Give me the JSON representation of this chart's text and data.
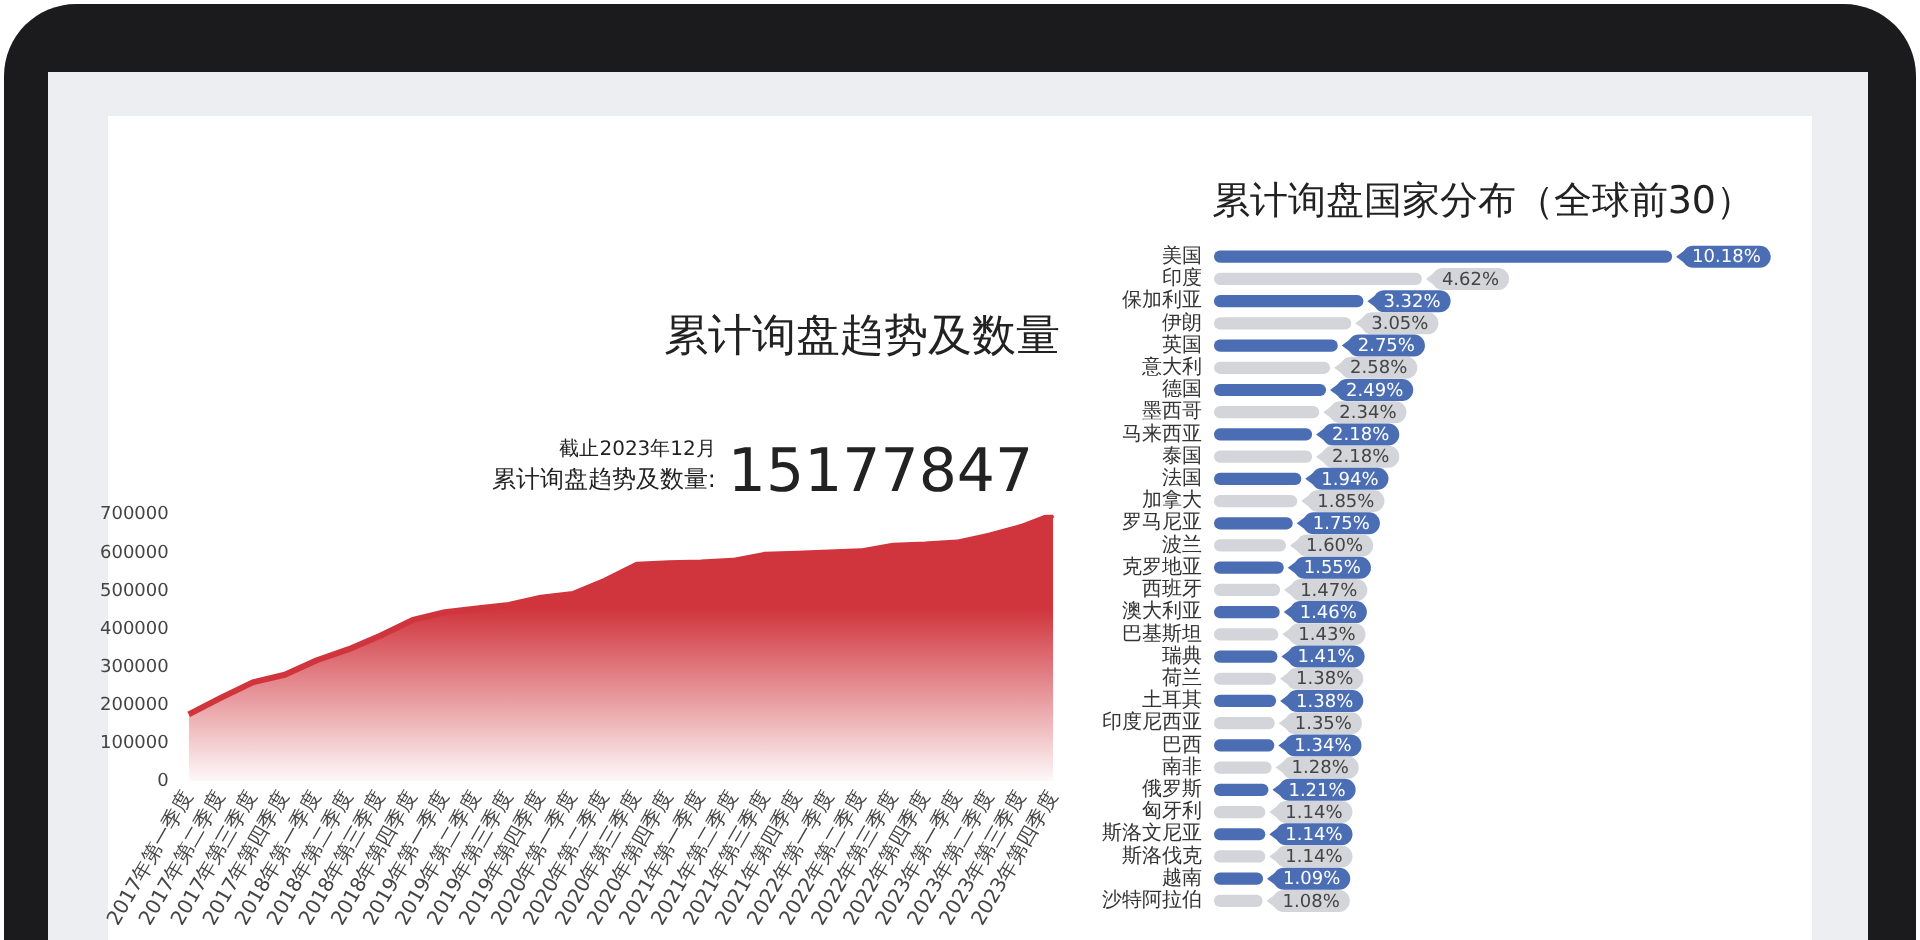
{
  "chart_data": [
    {
      "type": "area",
      "title": "累计询盘趋势及数量",
      "annotations": [
        "截止2023年12月",
        "累计询盘趋势及数量:",
        "15177847"
      ],
      "categories": [
        "2017年第一季度",
        "2017年第二季度",
        "2017年第三季度",
        "2017年第四季度",
        "2018年第一季度",
        "2018年第二季度",
        "2018年第三季度",
        "2018年第四季度",
        "2019年第一季度",
        "2019年第二季度",
        "2019年第三季度",
        "2019年第四季度",
        "2020年第一季度",
        "2020年第二季度",
        "2020年第三季度",
        "2020年第四季度",
        "2021年第一季度",
        "2021年第二季度",
        "2021年第三季度",
        "2021年第四季度",
        "2022年第一季度",
        "2022年第二季度",
        "2022年第三季度",
        "2022年第四季度",
        "2023年第一季度",
        "2023年第二季度",
        "2023年第三季度",
        "2023年第四季度"
      ],
      "series": [
        {
          "color": "#d0343c",
          "values": [
            176000,
            219000,
            260000,
            280000,
            318000,
            347000,
            383000,
            424000,
            444000,
            454000,
            463000,
            482000,
            492000,
            527000,
            569000,
            573000,
            575000,
            579000,
            595000,
            598000,
            601000,
            604000,
            619000,
            622000,
            627000,
            645000,
            668000,
            700000
          ]
        }
      ],
      "ylim": [
        0,
        700000
      ],
      "yticks": [
        0,
        100000,
        200000,
        300000,
        400000,
        500000,
        600000,
        700000
      ],
      "grid": false,
      "legend": false,
      "marker": "none"
    },
    {
      "type": "bar",
      "orientation": "horizontal",
      "title": "累计询盘国家分布（全球前30）",
      "tick_labels": "y",
      "categories": [
        "美国",
        "印度",
        "保加利亚",
        "伊朗",
        "英国",
        "意大利",
        "德国",
        "墨西哥",
        "马来西亚",
        "泰国",
        "法国",
        "加拿大",
        "罗马尼亚",
        "波兰",
        "克罗地亚",
        "西班牙",
        "澳大利亚",
        "巴基斯坦",
        "瑞典",
        "荷兰",
        "土耳其",
        "印度尼西亚",
        "巴西",
        "南非",
        "俄罗斯",
        "匈牙利",
        "斯洛文尼亚",
        "斯洛伐克",
        "越南",
        "沙特阿拉伯"
      ],
      "values": [
        10.18,
        4.62,
        3.32,
        3.05,
        2.75,
        2.58,
        2.49,
        2.34,
        2.18,
        2.18,
        1.94,
        1.85,
        1.75,
        1.6,
        1.55,
        1.47,
        1.46,
        1.43,
        1.41,
        1.38,
        1.38,
        1.35,
        1.34,
        1.28,
        1.21,
        1.14,
        1.14,
        1.14,
        1.09,
        1.08
      ],
      "value_labels": [
        "10.18%",
        "4.62%",
        "3.32%",
        "3.05%",
        "2.75%",
        "2.58%",
        "2.49%",
        "2.34%",
        "2.18%",
        "2.18%",
        "1.94%",
        "1.85%",
        "1.75%",
        "1.60%",
        "1.55%",
        "1.47%",
        "1.46%",
        "1.43%",
        "1.41%",
        "1.38%",
        "1.38%",
        "1.35%",
        "1.34%",
        "1.28%",
        "1.21%",
        "1.14%",
        "1.14%",
        "1.14%",
        "1.09%",
        "1.08%"
      ],
      "colors": [
        "#4a6db3",
        "#d4d5da",
        "#4a6db3",
        "#d4d5da",
        "#4a6db3",
        "#d4d5da",
        "#4a6db3",
        "#d4d5da",
        "#4a6db3",
        "#d4d5da",
        "#4a6db3",
        "#d4d5da",
        "#4a6db3",
        "#d4d5da",
        "#4a6db3",
        "#d4d5da",
        "#4a6db3",
        "#d4d5da",
        "#4a6db3",
        "#d4d5da",
        "#4a6db3",
        "#d4d5da",
        "#4a6db3",
        "#d4d5da",
        "#4a6db3",
        "#d4d5da",
        "#4a6db3",
        "#d4d5da",
        "#4a6db3",
        "#d4d5da"
      ],
      "grid": false,
      "legend": false
    }
  ]
}
